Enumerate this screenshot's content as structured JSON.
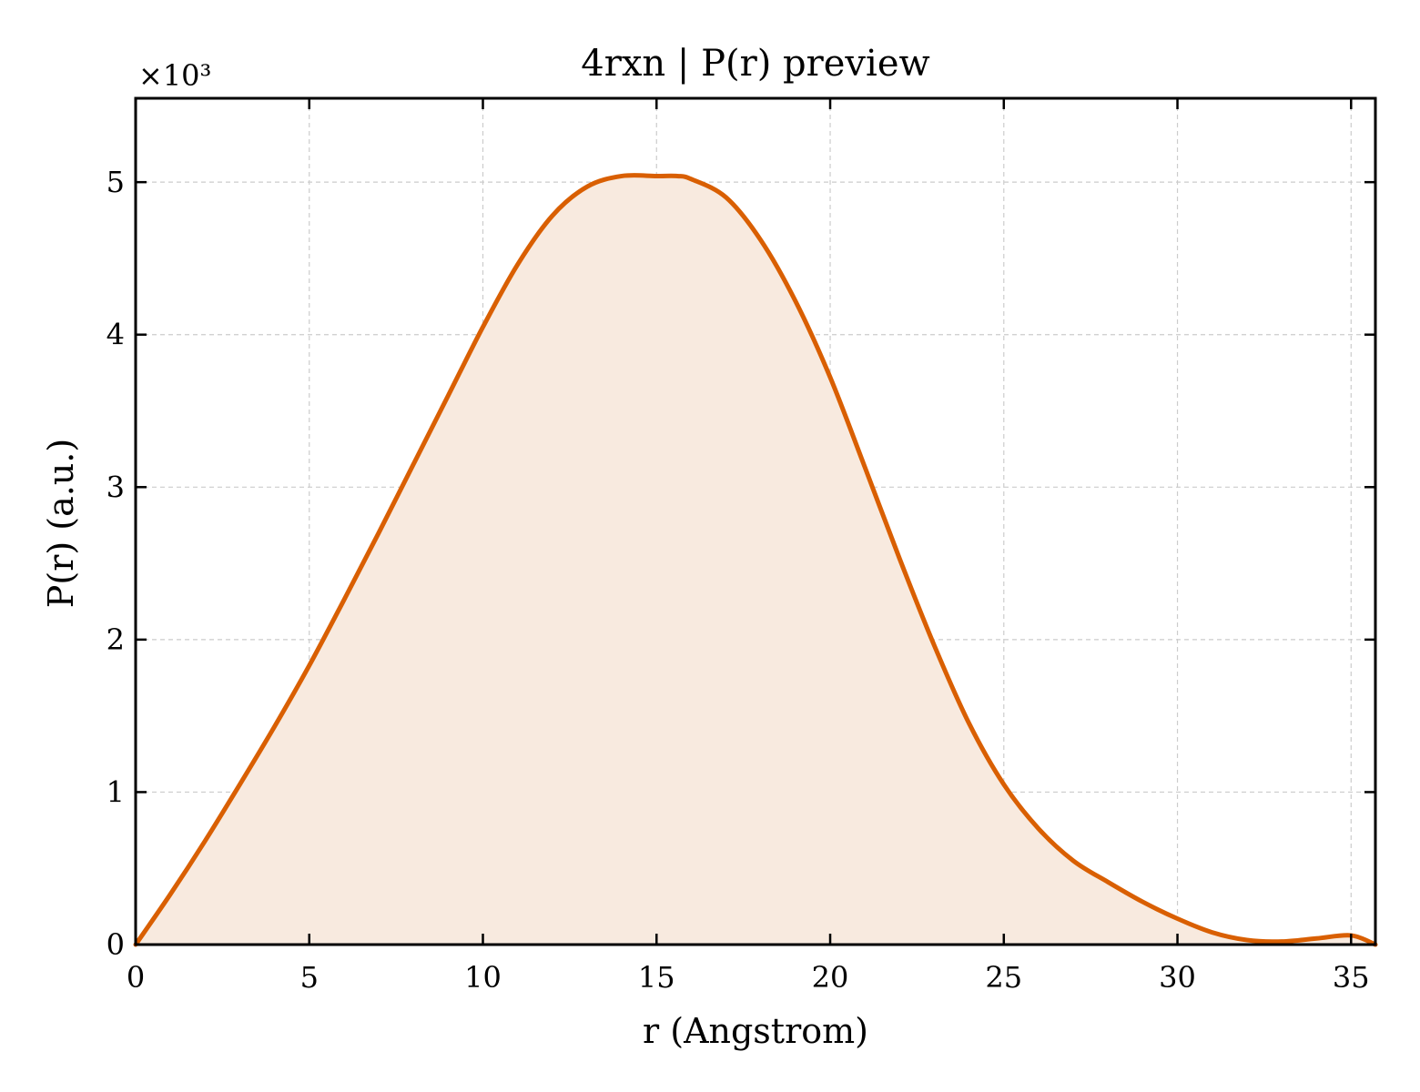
{
  "chart_data": {
    "type": "area",
    "title": "4rxn | P(r) preview",
    "xlabel": "r (Angstrom)",
    "ylabel": "P(r) (a.u.)",
    "y_offset_label": "×10³",
    "y_scale_factor": 1000,
    "xlim": [
      0,
      35.7
    ],
    "ylim": [
      0,
      5.55
    ],
    "x_ticks": [
      0,
      5,
      10,
      15,
      20,
      25,
      30,
      35
    ],
    "y_ticks": [
      0,
      1,
      2,
      3,
      4,
      5
    ],
    "grid": true,
    "legend": "none",
    "line_color": "#d95f02",
    "fill_color": "#f8eadf",
    "series": [
      {
        "x": [
          0,
          1,
          2,
          3,
          4,
          5,
          6,
          7,
          8,
          9,
          10,
          11,
          12,
          13,
          14,
          15,
          15.6,
          16,
          17,
          18,
          19,
          20,
          21,
          22,
          23,
          24,
          25,
          26,
          27,
          28,
          29,
          30,
          31,
          32,
          33,
          34,
          35,
          35.7
        ],
        "y": [
          0,
          0.33,
          0.68,
          1.05,
          1.43,
          1.83,
          2.26,
          2.7,
          3.15,
          3.6,
          4.05,
          4.46,
          4.78,
          4.97,
          5.04,
          5.04,
          5.04,
          5.02,
          4.9,
          4.62,
          4.22,
          3.72,
          3.13,
          2.53,
          1.96,
          1.45,
          1.05,
          0.76,
          0.55,
          0.41,
          0.28,
          0.17,
          0.08,
          0.03,
          0.02,
          0.04,
          0.06,
          0
        ]
      }
    ]
  }
}
